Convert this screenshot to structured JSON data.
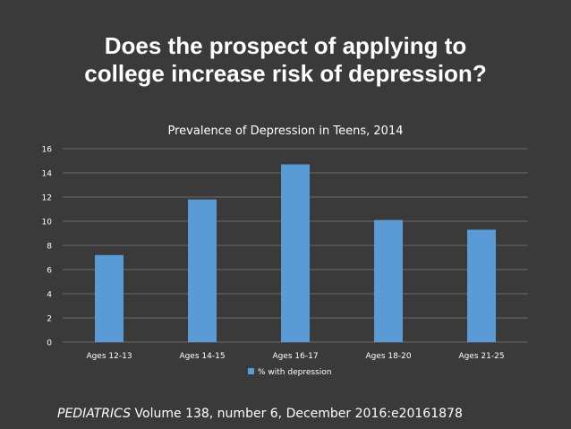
{
  "slide": {
    "title_line1": "Does the prospect of applying to",
    "title_line2": "college increase risk of depression?",
    "citation_journal": "PEDIATRICS",
    "citation_rest": " Volume 138, number 6, December 2016:e20161878"
  },
  "colors": {
    "background": "#3a3a3a",
    "bar": "#5b9bd5",
    "text": "#ffffff",
    "gridline": "#6b6b6b"
  },
  "chart_data": {
    "type": "bar",
    "title": "Prevalence of Depression in Teens, 2014",
    "categories": [
      "Ages 12-13",
      "Ages 14-15",
      "Ages 16-17",
      "Ages 18-20",
      "Ages 21-25"
    ],
    "series": [
      {
        "name": "% with depression",
        "values": [
          7.2,
          11.8,
          14.7,
          10.1,
          9.3
        ]
      }
    ],
    "yticks": [
      0,
      2,
      4,
      6,
      8,
      10,
      12,
      14,
      16
    ],
    "ylim": [
      0,
      16
    ],
    "grid": true,
    "legend": "bottom"
  }
}
